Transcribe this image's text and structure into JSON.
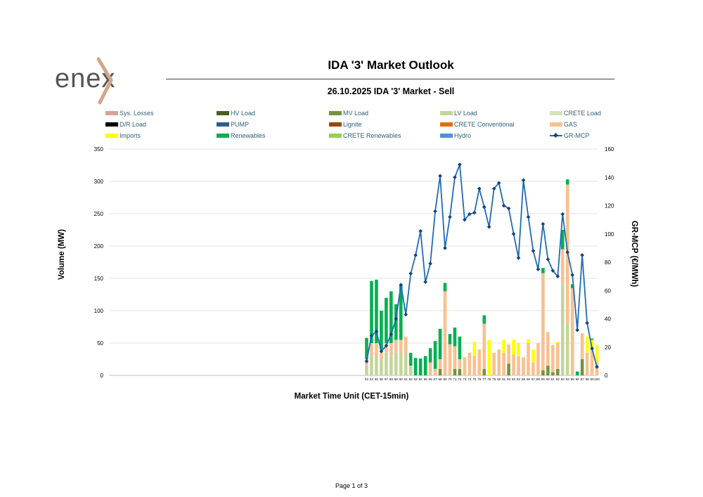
{
  "logo": {
    "text": "enex"
  },
  "header": {
    "title": "IDA '3' Market Outlook",
    "subtitle": "26.10.2025  IDA '3' Market - Sell"
  },
  "footer": {
    "page": "Page 1 of 3"
  },
  "colors": {
    "sys_losses": "#d9a09a",
    "hv_load": "#4a5e23",
    "mv_load": "#76923c",
    "lv_load": "#c3d69b",
    "crete_load": "#d7e4bc",
    "dr_load": "#000000",
    "pump": "#2e5e8e",
    "lignite": "#974706",
    "crete_conventional": "#e46c0a",
    "gas": "#fac090",
    "imports": "#ffff00",
    "renewables": "#00b050",
    "crete_renewables": "#92d050",
    "hydro": "#558ed5",
    "gr_mcp": "#1f6bb5"
  },
  "chart_data": {
    "type": "bar",
    "stacked": true,
    "xlabel": "Market Time Unit (CET-15min)",
    "ylabel": "Volume (MW)",
    "y2label": "GR-MCP (€/MWh)",
    "ylim": [
      0,
      350
    ],
    "y2lim": [
      0,
      160
    ],
    "yticks": [
      0,
      50,
      100,
      150,
      200,
      250,
      300,
      350
    ],
    "y2ticks": [
      0,
      20,
      40,
      60,
      80,
      100,
      120,
      140,
      160
    ],
    "grid": true,
    "legend_position": "top",
    "legend": [
      "Sys. Losses",
      "HV Load",
      "MV Load",
      "LV Load",
      "CRETE Load",
      "D/R Load",
      "PUMP",
      "Lignite",
      "CRETE Conventional",
      "GAS",
      "Imports",
      "Renewables",
      "CRETE Renewables",
      "Hydro",
      "GR-MCP"
    ],
    "categories": [
      "53",
      "54",
      "55",
      "56",
      "57",
      "58",
      "59",
      "60",
      "61",
      "62",
      "63",
      "64",
      "65",
      "66",
      "67",
      "68",
      "69",
      "70",
      "71",
      "72",
      "73",
      "74",
      "75",
      "76",
      "77",
      "78",
      "79",
      "80",
      "81",
      "82",
      "83",
      "84",
      "85",
      "86",
      "87",
      "88",
      "89",
      "90",
      "91",
      "92",
      "93",
      "94",
      "95",
      "96",
      "97",
      "98",
      "99",
      "100"
    ],
    "series": [
      {
        "name": "MV Load",
        "values": [
          0,
          0,
          0,
          0,
          0,
          0,
          0,
          0,
          0,
          0,
          0,
          0,
          0,
          0,
          0,
          10,
          0,
          0,
          10,
          10,
          0,
          0,
          0,
          0,
          10,
          0,
          0,
          0,
          0,
          18,
          0,
          0,
          0,
          0,
          0,
          0,
          8,
          15,
          5,
          10,
          0,
          0,
          0,
          0,
          25,
          0,
          0,
          0
        ]
      },
      {
        "name": "LV Load",
        "values": [
          15,
          30,
          30,
          25,
          35,
          30,
          35,
          35,
          35,
          15,
          0,
          0,
          0,
          0,
          0,
          0,
          0,
          0,
          0,
          0,
          0,
          0,
          0,
          0,
          0,
          0,
          0,
          0,
          0,
          0,
          0,
          0,
          0,
          0,
          0,
          0,
          0,
          0,
          0,
          0,
          140,
          80,
          0,
          0,
          0,
          0,
          0,
          0
        ]
      },
      {
        "name": "GAS",
        "values": [
          10,
          20,
          20,
          15,
          15,
          20,
          20,
          20,
          25,
          0,
          0,
          0,
          0,
          20,
          10,
          15,
          130,
          48,
          35,
          15,
          28,
          35,
          30,
          40,
          70,
          0,
          35,
          40,
          35,
          30,
          32,
          30,
          28,
          50,
          20,
          50,
          150,
          52,
          42,
          40,
          55,
          215,
          135,
          0,
          40,
          35,
          40,
          20
        ]
      },
      {
        "name": "Imports",
        "values": [
          0,
          0,
          0,
          0,
          0,
          0,
          0,
          0,
          0,
          0,
          0,
          0,
          0,
          0,
          0,
          0,
          0,
          0,
          0,
          0,
          0,
          0,
          22,
          0,
          0,
          55,
          0,
          0,
          20,
          0,
          23,
          20,
          0,
          6,
          20,
          0,
          0,
          0,
          0,
          2,
          0,
          0,
          0,
          0,
          0,
          25,
          15,
          27
        ]
      },
      {
        "name": "Renewables",
        "values": [
          33,
          96,
          98,
          60,
          70,
          80,
          55,
          85,
          0,
          20,
          27,
          26,
          30,
          22,
          43,
          47,
          13,
          16,
          29,
          35,
          0,
          0,
          0,
          0,
          13,
          0,
          0,
          0,
          0,
          0,
          0,
          0,
          0,
          0,
          0,
          0,
          8,
          0,
          0,
          0,
          30,
          8,
          6,
          6,
          0,
          0,
          2,
          0
        ]
      },
      {
        "name": "CRETE Renewables",
        "values": [
          0,
          0,
          0,
          0,
          0,
          0,
          0,
          0,
          0,
          0,
          0,
          0,
          0,
          0,
          0,
          0,
          0,
          0,
          0,
          0,
          0,
          0,
          0,
          0,
          0,
          0,
          0,
          0,
          0,
          0,
          0,
          0,
          0,
          0,
          0,
          0,
          0,
          0,
          0,
          0,
          0,
          0,
          0,
          0,
          0,
          0,
          0,
          0
        ]
      }
    ],
    "line": {
      "name": "GR-MCP",
      "axis": "right",
      "values": [
        10,
        28,
        31,
        17,
        21,
        29,
        40,
        64,
        43,
        72,
        85,
        102,
        66,
        79,
        116,
        141,
        90,
        112,
        140,
        149,
        110,
        114,
        115,
        132,
        119,
        105,
        132,
        136,
        120,
        118,
        100,
        83,
        138,
        112,
        88,
        75,
        107,
        82,
        74,
        70,
        114,
        87,
        71,
        32,
        85,
        37,
        19,
        6
      ]
    }
  }
}
